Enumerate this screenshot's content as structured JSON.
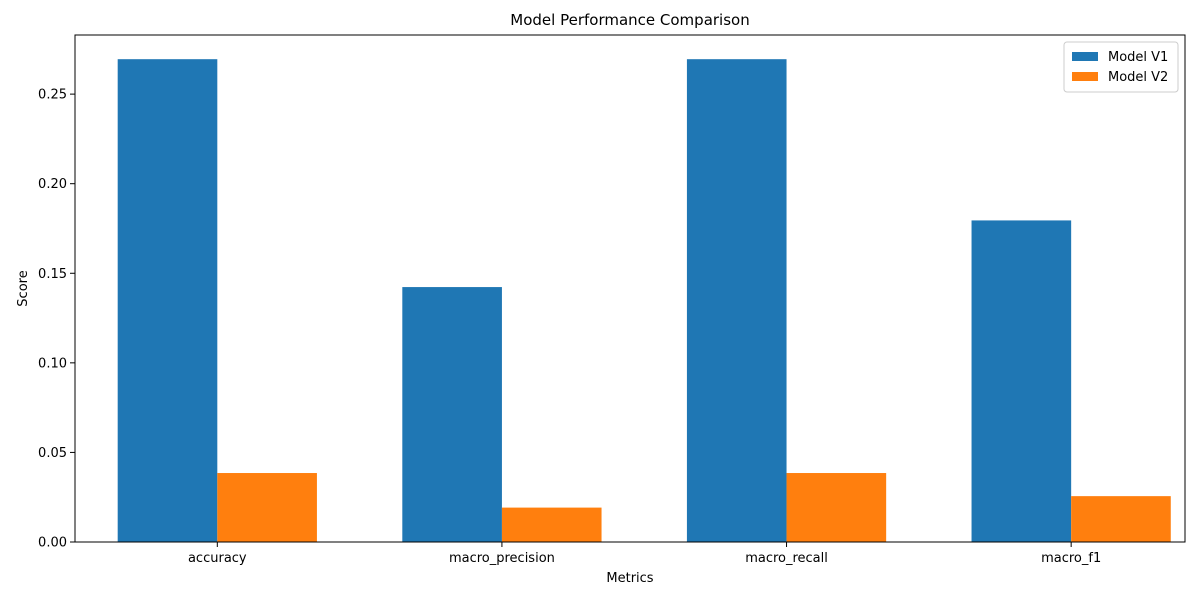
{
  "chart_data": {
    "type": "bar",
    "title": "Model Performance Comparison",
    "xlabel": "Metrics",
    "ylabel": "Score",
    "categories": [
      "accuracy",
      "macro_precision",
      "macro_recall",
      "macro_f1"
    ],
    "series": [
      {
        "name": "Model V1",
        "color": "#1f77b4",
        "values": [
          0.2695,
          0.1423,
          0.2695,
          0.1795
        ]
      },
      {
        "name": "Model V2",
        "color": "#ff7f0e",
        "values": [
          0.0385,
          0.0192,
          0.0385,
          0.0256
        ]
      }
    ],
    "ylim": [
      0,
      0.283
    ],
    "yticks": [
      0.0,
      0.05,
      0.1,
      0.15,
      0.2,
      0.25
    ],
    "ytick_labels": [
      "0.00",
      "0.05",
      "0.10",
      "0.15",
      "0.20",
      "0.25"
    ],
    "grid": false,
    "legend_position": "top-right"
  }
}
